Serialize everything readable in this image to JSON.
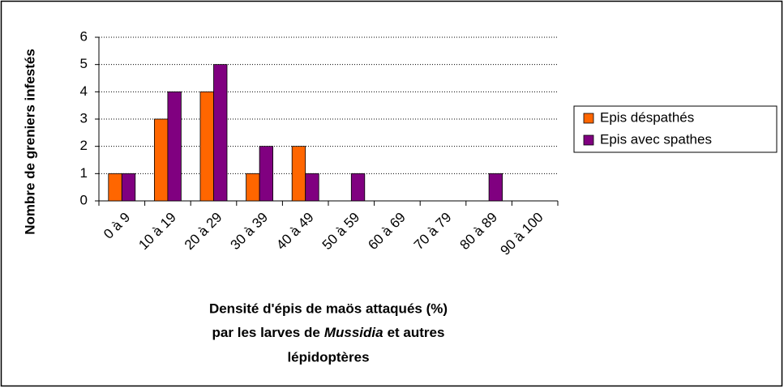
{
  "chart_data": {
    "type": "bar",
    "ylabel": "Nombre de greniers infestés",
    "xlabel": [
      "Densité d'épis de maös attaqués (%)",
      [
        "par les larves de",
        "Mussidia",
        "et autres"
      ],
      "lépidoptères"
    ],
    "categories": [
      "0 à 9",
      "10 à 19",
      "20 à 29",
      "30 à 39",
      "40 à 49",
      "50 à 59",
      "60 à 69",
      "70 à 79",
      "80 à 89",
      "90 à 100"
    ],
    "series": [
      {
        "name": "Epis déspathés",
        "color": "#ff6600",
        "values": [
          1,
          3,
          4,
          1,
          2,
          0,
          0,
          0,
          0,
          0
        ]
      },
      {
        "name": "Epis avec spathes",
        "color": "#800080",
        "values": [
          1,
          4,
          5,
          2,
          1,
          1,
          0,
          0,
          1,
          0
        ]
      }
    ],
    "ylim": [
      0,
      6
    ],
    "yticks": [
      0,
      1,
      2,
      3,
      4,
      5,
      6
    ],
    "grid": true,
    "legend": "right"
  }
}
